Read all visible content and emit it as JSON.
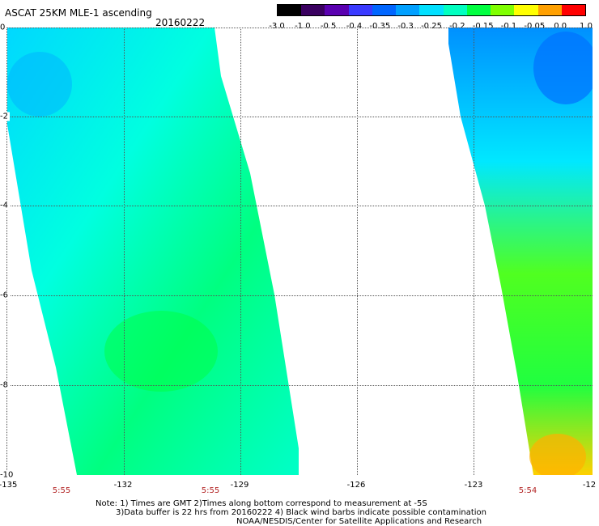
{
  "title": "ASCAT 25KM MLE-1 ascending",
  "date": "20160222",
  "colorbar": {
    "labels": [
      "-3.0",
      "-1.0",
      "-0.5",
      "-0.4",
      "-0.35",
      "-0.3",
      "-0.25",
      "-0.2",
      "-0.15",
      "-0.1",
      "-0.05",
      "0.0",
      "1.0"
    ],
    "colors": [
      "#000000",
      "#3a0060",
      "#5a00b0",
      "#3a3aff",
      "#0066ff",
      "#00a0ff",
      "#00e0ff",
      "#00ffc0",
      "#00ff40",
      "#80ff00",
      "#ffff00",
      "#ffa000",
      "#ff0000"
    ]
  },
  "axes": {
    "lat_labels": [
      "0",
      "-2",
      "-4",
      "-6",
      "-8",
      "-10"
    ],
    "lon_labels": [
      "-135",
      "-132",
      "-129",
      "-126",
      "-123",
      "-12"
    ]
  },
  "time_labels": [
    "5:55",
    "5:55",
    "5:54"
  ],
  "notes": {
    "line1": "Note: 1) Times are GMT 2)Times along bottom correspond to measurement at -5S",
    "line2": "3)Data buffer is 22 hrs from 20160222 4) Black wind barbs indicate possible contamination",
    "line3": "NOAA/NESDIS/Center for Satellite Applications and Research"
  }
}
